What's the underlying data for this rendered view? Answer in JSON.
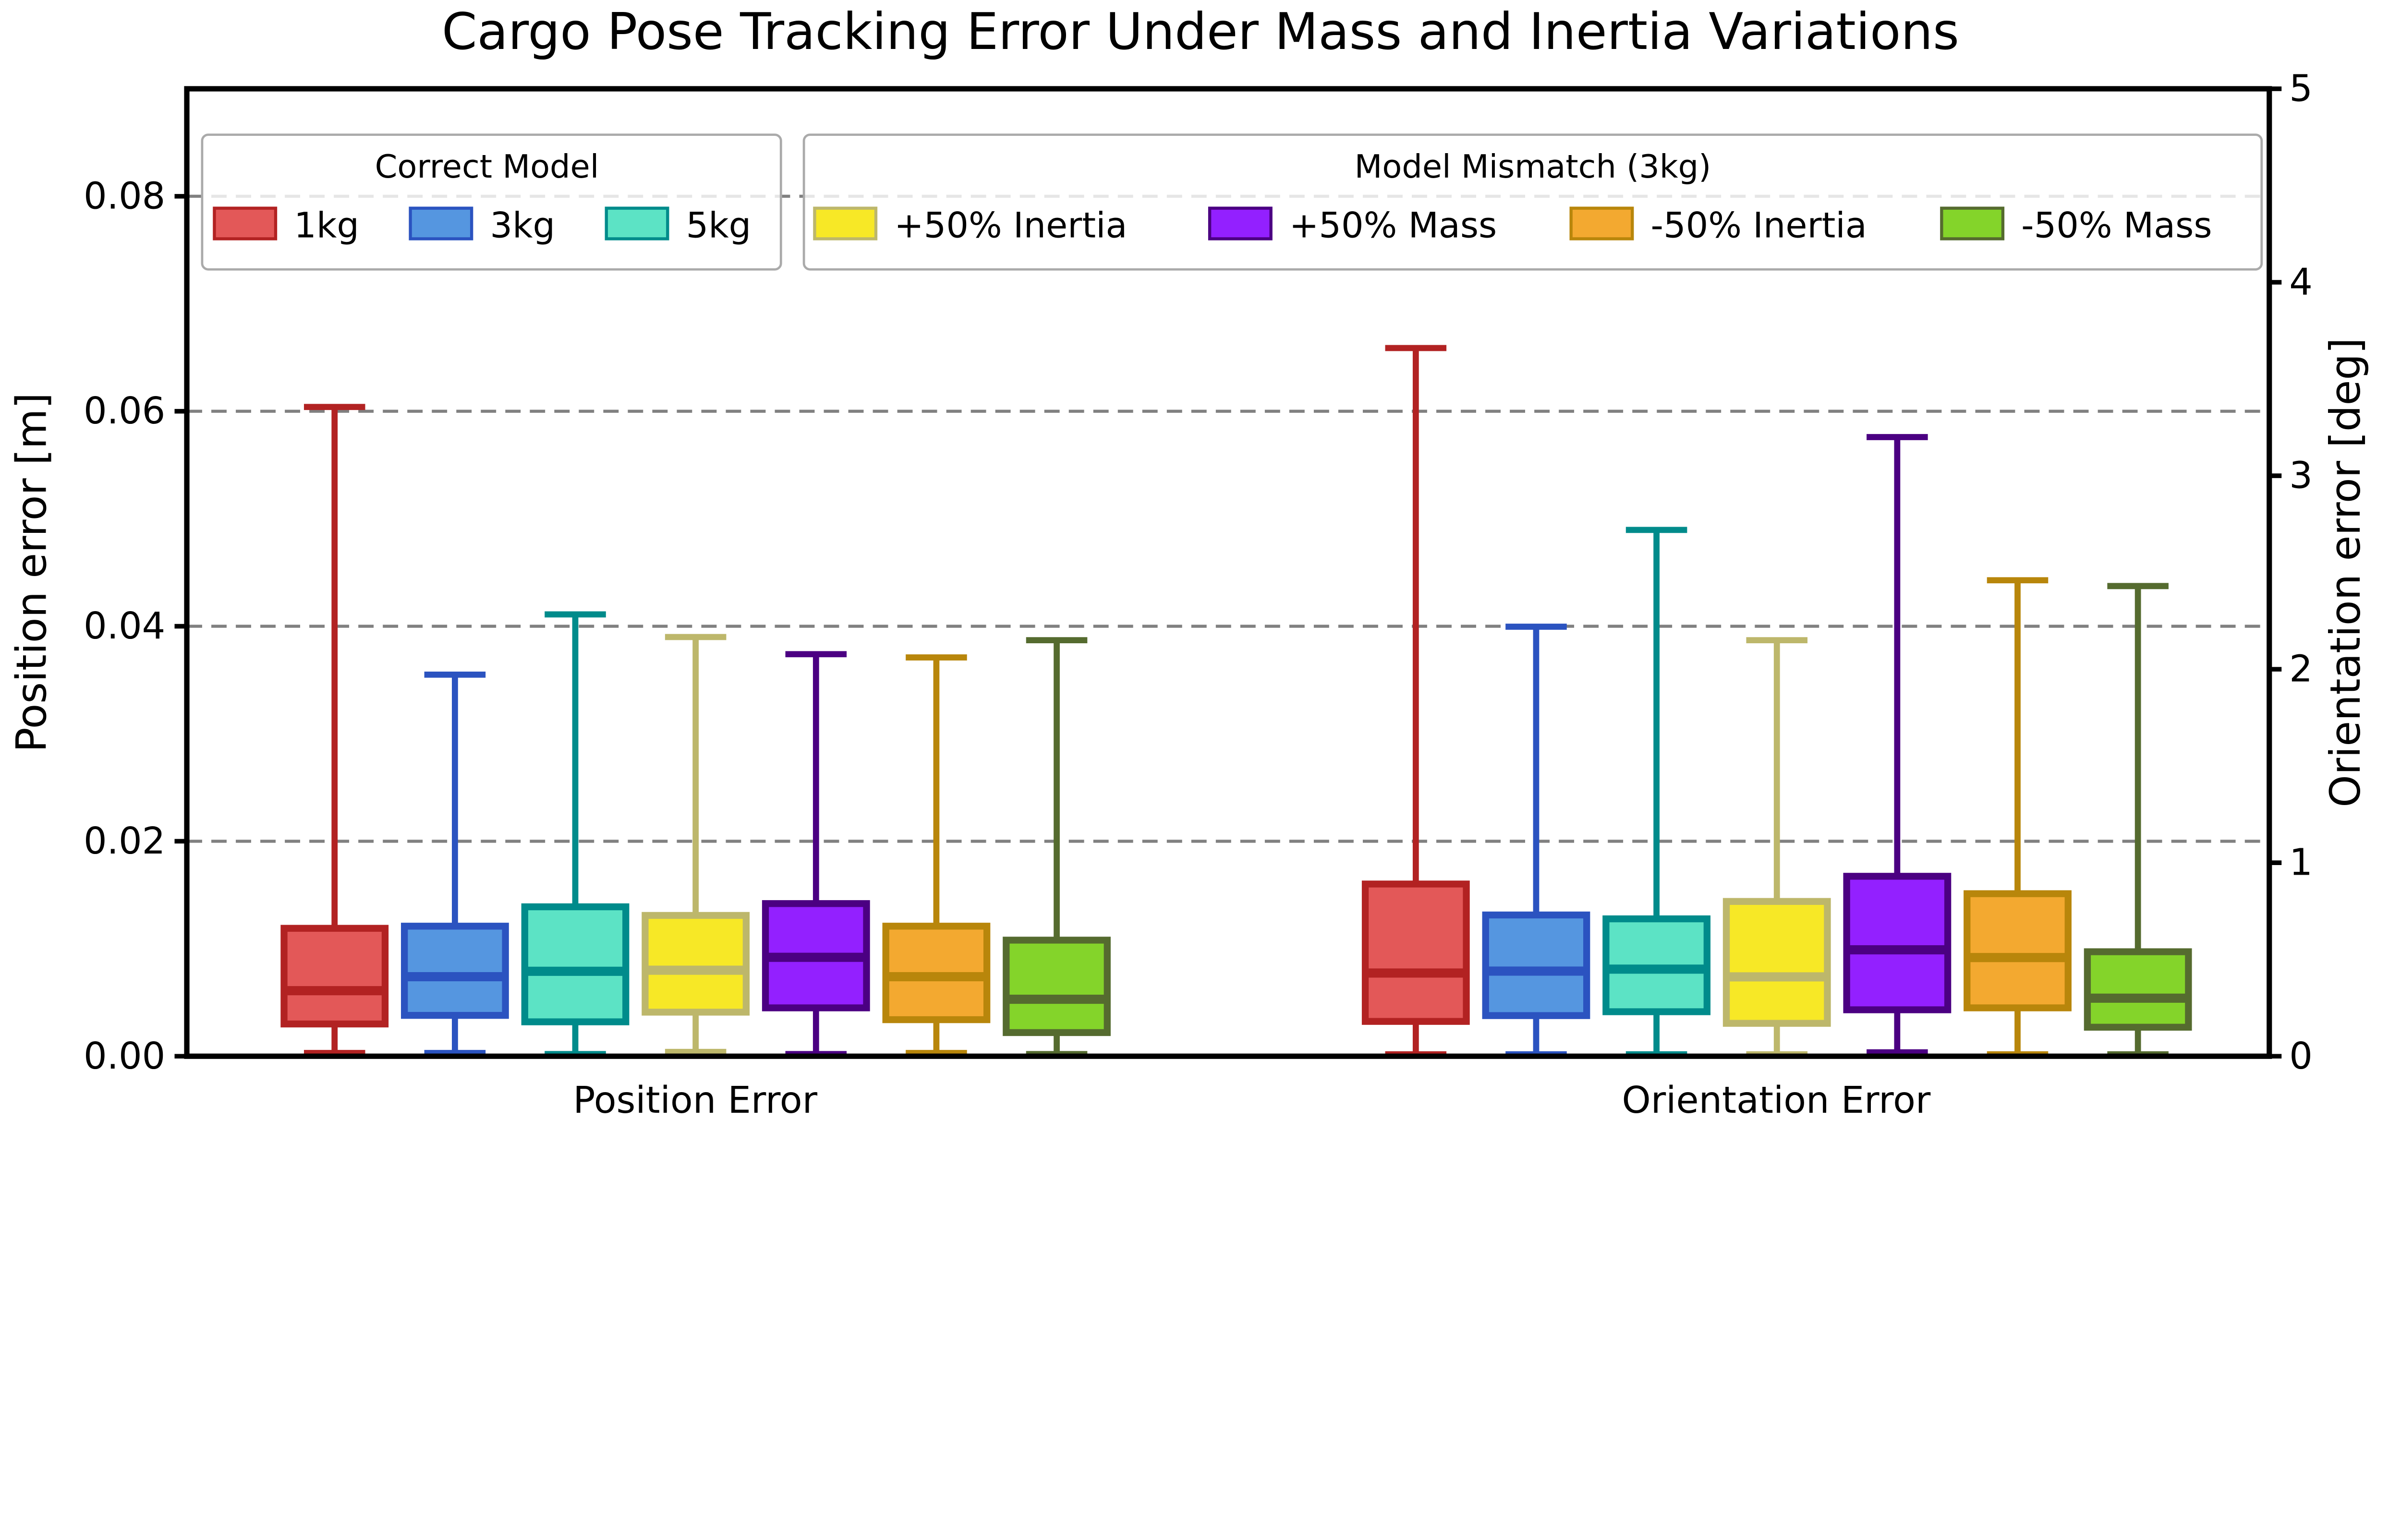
{
  "chart_data": {
    "type": "boxplot",
    "title": "Cargo Pose Tracking Error Under Mass and Inertia Variations",
    "ylabel": "Position error [m]",
    "y2label": "Orientation error [deg]",
    "ylim": [
      0,
      0.09
    ],
    "y2lim": [
      0,
      5
    ],
    "yticks": [
      "0.00",
      "0.02",
      "0.04",
      "0.06",
      "0.08"
    ],
    "y2ticks": [
      "0",
      "1",
      "2",
      "3",
      "4",
      "5"
    ],
    "grid": "horizontal dashed at left-axis ticks",
    "categories": [
      "Position Error",
      "Orientation Error"
    ],
    "legend_groups": [
      {
        "title": "Correct Model",
        "entries": [
          0,
          1,
          2
        ]
      },
      {
        "title": "Model Mismatch (3kg)",
        "entries": [
          3,
          4,
          5,
          6
        ]
      }
    ],
    "legend_placement": "top",
    "series": [
      {
        "name": "1kg",
        "fill": "#e35858",
        "edge": "#b22222",
        "position": {
          "min": 0.0003,
          "q1": 0.003,
          "median": 0.0061,
          "q3": 0.0119,
          "max": 0.0604
        },
        "orientation": {
          "min": 0.01,
          "q1": 0.18,
          "median": 0.43,
          "q3": 0.89,
          "max": 3.66
        }
      },
      {
        "name": "3kg",
        "fill": "#5596e0",
        "edge": "#2b53c0",
        "position": {
          "min": 0.0003,
          "q1": 0.0038,
          "median": 0.0074,
          "q3": 0.0121,
          "max": 0.0355
        },
        "orientation": {
          "min": 0.01,
          "q1": 0.21,
          "median": 0.44,
          "q3": 0.73,
          "max": 2.22
        }
      },
      {
        "name": "5kg",
        "fill": "#5ce3c5",
        "edge": "#008b8b",
        "position": {
          "min": 0.0002,
          "q1": 0.0032,
          "median": 0.0079,
          "q3": 0.0139,
          "max": 0.0411
        },
        "orientation": {
          "min": 0.01,
          "q1": 0.23,
          "median": 0.45,
          "q3": 0.71,
          "max": 2.72
        }
      },
      {
        "name": "+50% Inertia",
        "fill": "#f7e826",
        "edge": "#bdb76b",
        "position": {
          "min": 0.0004,
          "q1": 0.0041,
          "median": 0.008,
          "q3": 0.0131,
          "max": 0.039
        },
        "orientation": {
          "min": 0.01,
          "q1": 0.17,
          "median": 0.41,
          "q3": 0.8,
          "max": 2.15
        }
      },
      {
        "name": "+50% Mass",
        "fill": "#9320ff",
        "edge": "#4b0082",
        "position": {
          "min": 0.0002,
          "q1": 0.0045,
          "median": 0.0092,
          "q3": 0.0142,
          "max": 0.0374
        },
        "orientation": {
          "min": 0.02,
          "q1": 0.24,
          "median": 0.55,
          "q3": 0.93,
          "max": 3.2
        }
      },
      {
        "name": "-50% Inertia",
        "fill": "#f3a930",
        "edge": "#b8860b",
        "position": {
          "min": 0.0003,
          "q1": 0.0034,
          "median": 0.0074,
          "q3": 0.0121,
          "max": 0.0371
        },
        "orientation": {
          "min": 0.01,
          "q1": 0.25,
          "median": 0.51,
          "q3": 0.84,
          "max": 2.46
        }
      },
      {
        "name": "-50% Mass",
        "fill": "#84d42a",
        "edge": "#556b2f",
        "position": {
          "min": 0.0002,
          "q1": 0.0022,
          "median": 0.0053,
          "q3": 0.0108,
          "max": 0.0387
        },
        "orientation": {
          "min": 0.01,
          "q1": 0.15,
          "median": 0.3,
          "q3": 0.54,
          "max": 2.43
        }
      }
    ]
  }
}
